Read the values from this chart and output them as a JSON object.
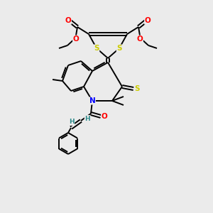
{
  "bg_color": "#ebebeb",
  "atom_colors": {
    "S": "#cccc00",
    "N": "#0000ff",
    "O": "#ff0000",
    "C": "#000000",
    "H": "#2e8b8b"
  },
  "lw": 1.4,
  "fs": 7.5,
  "fs_small": 6.5
}
